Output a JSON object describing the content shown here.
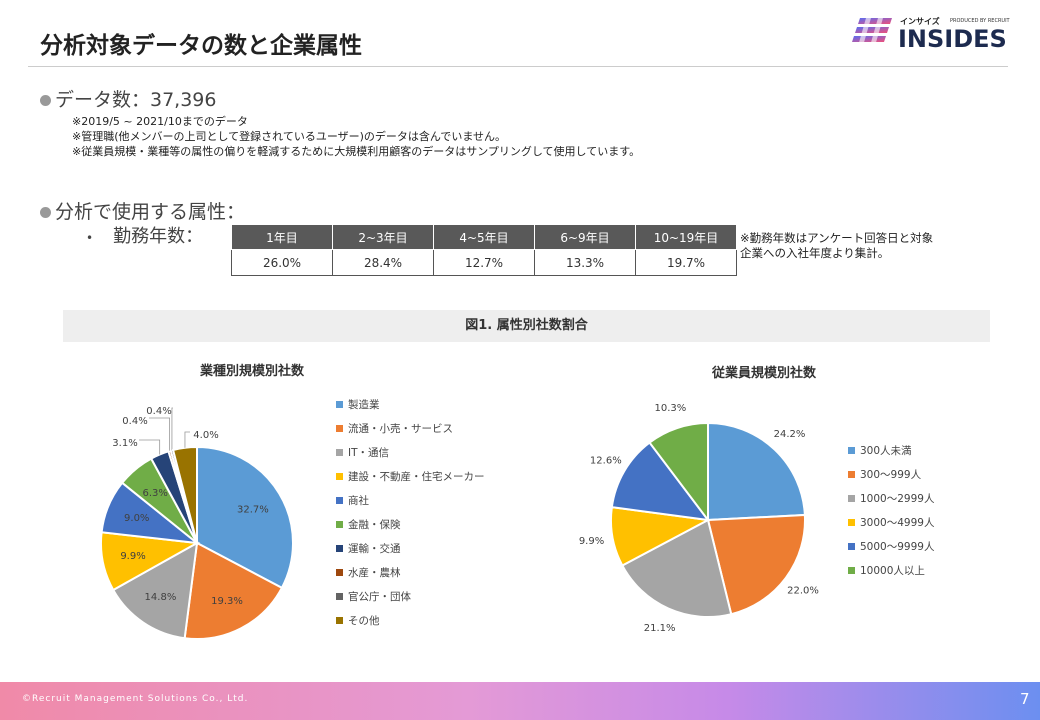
{
  "title": "分析対象データの数と企業属性",
  "logo": {
    "sub": "インサイズ",
    "produced": "PRODUCED BY RECRUIT",
    "main": "INSIDES"
  },
  "data_count": "データ数：37,396",
  "notes": [
    "※2019/5 ~ 2021/10までのデータ",
    "※管理職(他メンバーの上司として登録されているユーザー)のデータは含んでいません。",
    "※従業員規模・業種等の属性の偏りを軽減するために大規模利用顧客のデータはサンプリングして使用しています。"
  ],
  "attr_heading": "分析で使用する属性：",
  "tenure": {
    "bullet": "•",
    "label": "勤務年数：",
    "headers": [
      "1年目",
      "2~3年目",
      "4~5年目",
      "6~9年目",
      "10~19年目"
    ],
    "values": [
      "26.0%",
      "28.4%",
      "12.7%",
      "13.3%",
      "19.7%"
    ],
    "note": [
      "※勤務年数はアンケート回答日と対象",
      "企業への入社年度より集計。"
    ]
  },
  "figure_title": "図1. 属性別社数割合",
  "chart_data": [
    {
      "type": "pie",
      "title": "業種別規模別社数",
      "categories": [
        "製造業",
        "流通・小売・サービス",
        "IT・通信",
        "建設・不動産・住宅メーカー",
        "商社",
        "金融・保険",
        "運輸・交通",
        "水産・農林",
        "官公庁・団体",
        "その他"
      ],
      "values": [
        32.7,
        19.3,
        14.8,
        9.9,
        9.0,
        6.3,
        3.1,
        0.4,
        0.4,
        4.0
      ],
      "labels": [
        "32.7%",
        "19.3%",
        "14.8%",
        "9.9%",
        "9.0%",
        "6.3%",
        "3.1%",
        "0.4%",
        "0.4%",
        "4.0%"
      ],
      "colors": [
        "#5B9BD5",
        "#ED7D31",
        "#A5A5A5",
        "#FFC000",
        "#4472C4",
        "#70AD47",
        "#264478",
        "#9E480E",
        "#636363",
        "#997300"
      ],
      "legend": "right"
    },
    {
      "type": "pie",
      "title": "従業員規模別社数",
      "categories": [
        "300人未満",
        "300〜999人",
        "1000〜2999人",
        "3000〜4999人",
        "5000〜9999人",
        "10000人以上"
      ],
      "values": [
        24.2,
        22.0,
        21.1,
        9.9,
        12.6,
        10.3
      ],
      "labels": [
        "24.2%",
        "22.0%",
        "21.1%",
        "9.9%",
        "12.6%",
        "10.3%"
      ],
      "colors": [
        "#5B9BD5",
        "#ED7D31",
        "#A5A5A5",
        "#FFC000",
        "#4472C4",
        "#70AD47"
      ],
      "legend": "right"
    }
  ],
  "footer": {
    "copyright": "©Recruit Management Solutions Co., Ltd.",
    "page": "7"
  }
}
